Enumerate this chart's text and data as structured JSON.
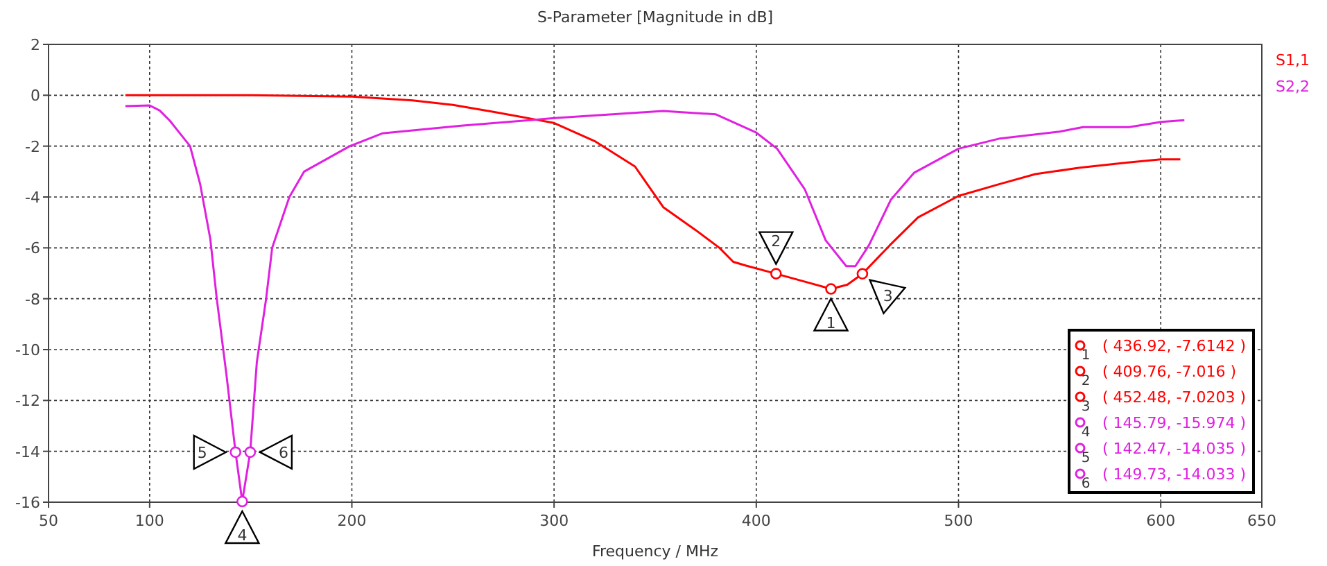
{
  "chart_data": {
    "type": "line",
    "title": "S-Parameter [Magnitude in dB]",
    "xlabel": "Frequency / MHz",
    "xlim": [
      50,
      650
    ],
    "xticks": [
      50,
      100,
      200,
      300,
      400,
      500,
      600,
      650
    ],
    "ylim": [
      -16,
      2
    ],
    "yticks": [
      2,
      0,
      -2,
      -4,
      -6,
      -8,
      -10,
      -12,
      -14,
      -16
    ],
    "grid": true,
    "legend": "right",
    "series": [
      {
        "name": "S1,1",
        "color": "#ff0000",
        "x": [
          88,
          100,
          150,
          200,
          230,
          250,
          270,
          300,
          320,
          340,
          354,
          370,
          381.8,
          388.6,
          395,
          409.76,
          425,
          436.92,
          445,
          452.48,
          466,
          480,
          500,
          520,
          538,
          560,
          583,
          600,
          609.7
        ],
        "values": [
          0,
          0,
          0,
          -0.05,
          -0.2,
          -0.38,
          -0.65,
          -1.09,
          -1.8,
          -2.8,
          -4.4,
          -5.3,
          -6.0,
          -6.55,
          -6.7,
          -7.016,
          -7.35,
          -7.6142,
          -7.45,
          -7.0203,
          -5.9,
          -4.8,
          -3.96,
          -3.5,
          -3.1,
          -2.85,
          -2.65,
          -2.52,
          -2.52
        ]
      },
      {
        "name": "S2,2",
        "color": "#e020e0",
        "x": [
          88,
          100,
          105,
          110,
          120,
          125,
          130,
          133.2,
          138,
          142.47,
          145.79,
          149.73,
          153,
          157.6,
          160.6,
          169.1,
          176.4,
          199,
          215,
          254,
          300,
          354,
          380,
          400,
          410.3,
          424,
          434.3,
          444.5,
          449,
          455.7,
          466.6,
          478,
          500,
          520.5,
          550,
          561.6,
          584.4,
          600.3,
          611.7
        ],
        "values": [
          -0.43,
          -0.4,
          -0.6,
          -1.0,
          -2.0,
          -3.5,
          -5.65,
          -8,
          -11,
          -14.035,
          -15.974,
          -14.033,
          -10.5,
          -8,
          -6,
          -4,
          -3,
          -2,
          -1.5,
          -1.2,
          -0.9,
          -0.62,
          -0.75,
          -1.47,
          -2.1,
          -3.7,
          -5.7,
          -6.72,
          -6.72,
          -5.9,
          -4.1,
          -3.05,
          -2.1,
          -1.7,
          -1.43,
          -1.25,
          -1.25,
          -1.05,
          -0.98
        ]
      },
      {
        "type": "scatter",
        "marker": "circle",
        "color": "#ff0000",
        "x": [
          436.92,
          409.76,
          452.48
        ],
        "values": [
          -7.6142,
          -7.016,
          -7.0203
        ]
      },
      {
        "type": "scatter",
        "marker": "circle",
        "color": "#e020e0",
        "x": [
          145.79,
          142.47,
          149.73
        ],
        "values": [
          -15.974,
          -14.035,
          -14.033
        ]
      }
    ],
    "annotations": [
      {
        "text": "1",
        "x": 436.92,
        "y": -7.6142
      },
      {
        "text": "2",
        "x": 409.76,
        "y": -7.016
      },
      {
        "text": "3",
        "x": 452.48,
        "y": -7.0203
      },
      {
        "text": "4",
        "x": 145.79,
        "y": -15.974
      },
      {
        "text": "5",
        "x": 142.47,
        "y": -14.035
      },
      {
        "text": "6",
        "x": 149.73,
        "y": -14.033
      },
      "( 436.92, -7.6142 )",
      "( 409.76, -7.016 )",
      "( 452.48, -7.0203 )",
      "( 145.79, -15.974 )",
      "( 142.47, -14.035 )",
      "( 149.73, -14.033 )"
    ]
  }
}
